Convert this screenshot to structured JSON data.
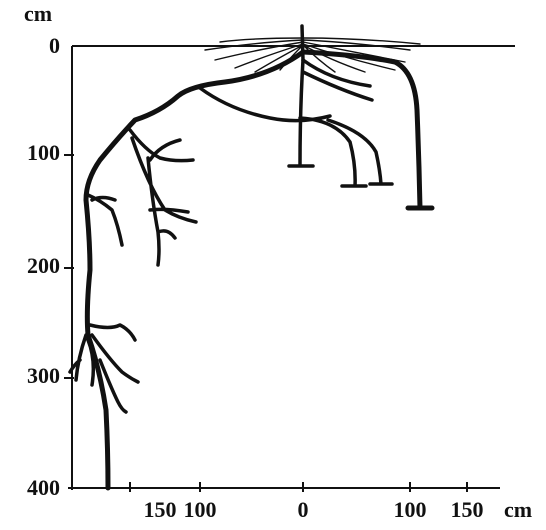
{
  "axes": {
    "y_unit": "cm",
    "y_labels": [
      0,
      100,
      200,
      300,
      400
    ],
    "x_labels": [
      150,
      100,
      0,
      100,
      150
    ],
    "x_unit": "cm"
  }
}
